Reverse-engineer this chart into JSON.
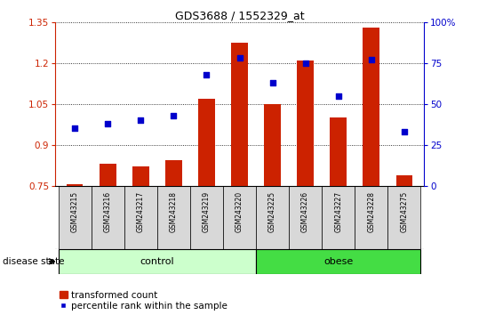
{
  "title": "GDS3688 / 1552329_at",
  "samples": [
    "GSM243215",
    "GSM243216",
    "GSM243217",
    "GSM243218",
    "GSM243219",
    "GSM243220",
    "GSM243225",
    "GSM243226",
    "GSM243227",
    "GSM243228",
    "GSM243275"
  ],
  "transformed_count": [
    0.755,
    0.83,
    0.82,
    0.845,
    1.07,
    1.275,
    1.05,
    1.21,
    1.0,
    1.33,
    0.79
  ],
  "percentile_rank": [
    35,
    38,
    40,
    43,
    68,
    78,
    63,
    75,
    55,
    77,
    33
  ],
  "ylim_left": [
    0.75,
    1.35
  ],
  "ylim_right": [
    0,
    100
  ],
  "yticks_left": [
    0.75,
    0.9,
    1.05,
    1.2,
    1.35
  ],
  "ytick_labels_left": [
    "0.75",
    "0.9",
    "1.05",
    "1.2",
    "1.35"
  ],
  "yticks_right": [
    0,
    25,
    50,
    75,
    100
  ],
  "ytick_labels_right": [
    "0",
    "25",
    "50",
    "75",
    "100%"
  ],
  "bar_color": "#cc2200",
  "dot_color": "#0000cc",
  "bar_width": 0.5,
  "n_control": 6,
  "n_obese": 5,
  "control_label": "control",
  "obese_label": "obese",
  "disease_state_label": "disease state",
  "legend_bar_label": "transformed count",
  "legend_dot_label": "percentile rank within the sample",
  "control_color": "#ccffcc",
  "obese_color": "#44dd44",
  "tick_area_color": "#d8d8d8",
  "background_color": "#ffffff"
}
